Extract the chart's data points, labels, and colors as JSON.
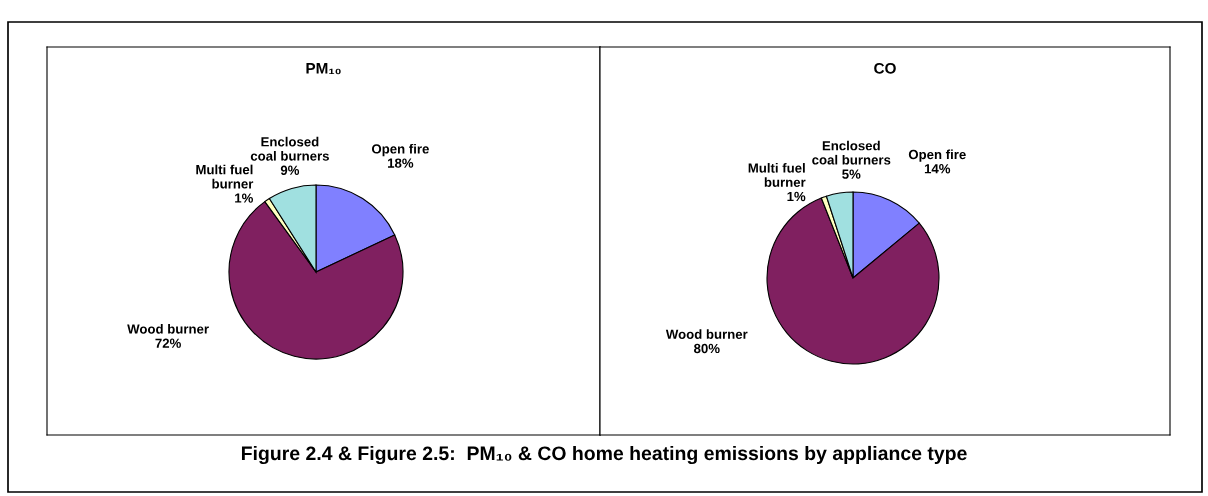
{
  "chart_data": [
    {
      "type": "pie",
      "title": "PM₁₀",
      "categories": [
        "Open fire",
        "Wood burner",
        "Multi fuel\nburner",
        "Enclosed\ncoal burners"
      ],
      "values": [
        18,
        72,
        1,
        9
      ],
      "value_labels": [
        "18%",
        "72%",
        "1%",
        "9%"
      ],
      "colors": [
        "#8080ff",
        "#802060",
        "#ffffc0",
        "#a0e0e0"
      ],
      "annotations": [
        "Figure 2.4 & Figure 2.5:  PM₁₀ & CO home heating emissions by appliance type"
      ]
    },
    {
      "type": "pie",
      "title": "CO",
      "categories": [
        "Open fire",
        "Wood burner",
        "Multi fuel\nburner",
        "Enclosed\ncoal burners"
      ],
      "values": [
        14,
        80,
        1,
        5
      ],
      "value_labels": [
        "14%",
        "80%",
        "1%",
        "5%"
      ],
      "colors": [
        "#8080ff",
        "#802060",
        "#ffffc0",
        "#a0e0e0"
      ]
    }
  ]
}
